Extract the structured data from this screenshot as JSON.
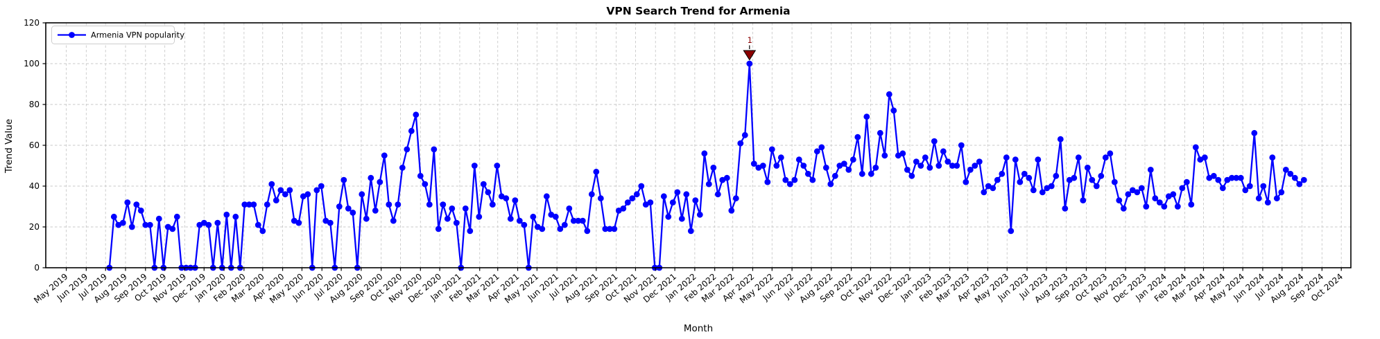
{
  "chart": {
    "title": "VPN Search Trend for Armenia",
    "xlabel": "Month",
    "ylabel": "Trend Value",
    "legend_label": "Armenia VPN popularity"
  },
  "chart_data": {
    "type": "line",
    "title": "VPN Search Trend for Armenia",
    "xlabel": "Month",
    "ylabel": "Trend Value",
    "series_name": "Armenia VPN popularity",
    "line_color": "#0000ff",
    "marker": "circle",
    "grid": true,
    "grid_color": "#c9c9c9",
    "legend_position": "upper left",
    "ylim": [
      0,
      120
    ],
    "yticks": [
      0,
      20,
      40,
      60,
      80,
      100,
      120
    ],
    "x_interval": "weekly",
    "x_start_week": "2019-07-07",
    "x_tick_labels": [
      "May 2019",
      "Jun 2019",
      "Jul 2019",
      "Aug 2019",
      "Sep 2019",
      "Oct 2019",
      "Nov 2019",
      "Dec 2019",
      "Jan 2020",
      "Feb 2020",
      "Mar 2020",
      "Apr 2020",
      "May 2020",
      "Jun 2020",
      "Jul 2020",
      "Aug 2020",
      "Sep 2020",
      "Oct 2020",
      "Nov 2020",
      "Dec 2020",
      "Jan 2021",
      "Feb 2021",
      "Mar 2021",
      "Apr 2021",
      "May 2021",
      "Jun 2021",
      "Jul 2021",
      "Aug 2021",
      "Sep 2021",
      "Oct 2021",
      "Nov 2021",
      "Dec 2021",
      "Jan 2022",
      "Feb 2022",
      "Mar 2022",
      "Apr 2022",
      "May 2022",
      "Jun 2022",
      "Jul 2022",
      "Aug 2022",
      "Sep 2022",
      "Oct 2022",
      "Nov 2022",
      "Dec 2022",
      "Jan 2023",
      "Feb 2023",
      "Mar 2023",
      "Apr 2023",
      "May 2023",
      "Jun 2023",
      "Jul 2023",
      "Aug 2023",
      "Sep 2023",
      "Oct 2023",
      "Nov 2023",
      "Dec 2023",
      "Jan 2024",
      "Feb 2024",
      "Mar 2024",
      "Apr 2024",
      "May 2024",
      "Jun 2024",
      "Jul 2024",
      "Aug 2024",
      "Sep 2024",
      "Oct 2024"
    ],
    "annotation": {
      "label": "1",
      "value": 100,
      "series_index": 142,
      "color": "#8b0000"
    },
    "values": [
      0,
      25,
      21,
      22,
      32,
      20,
      31,
      28,
      21,
      21,
      0,
      24,
      0,
      20,
      19,
      25,
      0,
      0,
      0,
      0,
      21,
      22,
      21,
      0,
      22,
      0,
      26,
      0,
      25,
      0,
      31,
      31,
      31,
      21,
      18,
      31,
      41,
      33,
      38,
      36,
      38,
      23,
      22,
      35,
      36,
      0,
      38,
      40,
      23,
      22,
      0,
      30,
      43,
      29,
      27,
      0,
      36,
      24,
      44,
      28,
      42,
      55,
      31,
      23,
      31,
      49,
      58,
      67,
      75,
      45,
      41,
      31,
      58,
      19,
      31,
      24,
      29,
      22,
      0,
      29,
      18,
      50,
      25,
      41,
      37,
      31,
      50,
      35,
      34,
      24,
      33,
      23,
      21,
      0,
      25,
      20,
      19,
      35,
      26,
      25,
      19,
      21,
      29,
      23,
      23,
      23,
      18,
      36,
      47,
      34,
      19,
      19,
      19,
      28,
      29,
      32,
      34,
      36,
      40,
      31,
      32,
      0,
      0,
      35,
      25,
      32,
      37,
      24,
      36,
      18,
      33,
      26,
      56,
      41,
      49,
      36,
      43,
      44,
      28,
      34,
      61,
      65,
      100,
      51,
      49,
      50,
      42,
      58,
      50,
      54,
      43,
      41,
      43,
      53,
      50,
      46,
      43,
      57,
      59,
      49,
      41,
      45,
      50,
      51,
      48,
      53,
      64,
      46,
      74,
      46,
      49,
      66,
      55,
      85,
      77,
      55,
      56,
      48,
      45,
      52,
      50,
      54,
      49,
      62,
      50,
      57,
      52,
      50,
      50,
      60,
      42,
      48,
      50,
      52,
      37,
      40,
      39,
      43,
      46,
      54,
      18,
      53,
      42,
      46,
      44,
      38,
      53,
      37,
      39,
      40,
      45,
      63,
      29,
      43,
      44,
      54,
      33,
      49,
      43,
      40,
      45,
      54,
      56,
      42,
      33,
      29,
      36,
      38,
      37,
      39,
      30,
      48,
      34,
      32,
      30,
      35,
      36,
      30,
      39,
      42,
      31,
      59,
      53,
      54,
      44,
      45,
      43,
      39,
      43,
      44,
      44,
      44,
      38,
      40,
      66,
      34,
      40,
      32,
      54,
      34,
      37,
      48,
      46,
      44,
      41,
      43
    ]
  }
}
